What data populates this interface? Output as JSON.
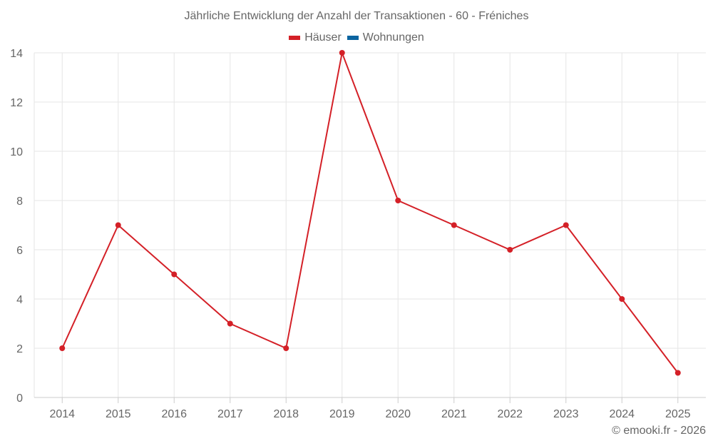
{
  "chart_data": {
    "type": "line",
    "title": "Jährliche Entwicklung der Anzahl der Transaktionen - 60 - Fréniches",
    "xlabel": "",
    "ylabel": "",
    "categories": [
      "2014",
      "2015",
      "2016",
      "2017",
      "2018",
      "2019",
      "2020",
      "2021",
      "2022",
      "2023",
      "2024",
      "2025"
    ],
    "series": [
      {
        "name": "Häuser",
        "color": "#d42027",
        "values": [
          2,
          7,
          5,
          3,
          2,
          14,
          8,
          7,
          6,
          7,
          4,
          1
        ]
      },
      {
        "name": "Wohnungen",
        "color": "#0b64a0",
        "values": []
      }
    ],
    "ylim": [
      0,
      14
    ],
    "yticks": [
      0,
      2,
      4,
      6,
      8,
      10,
      12,
      14
    ],
    "grid": true,
    "legend_position": "top"
  },
  "legend": {
    "items": [
      {
        "label": "Häuser",
        "color": "#d42027"
      },
      {
        "label": "Wohnungen",
        "color": "#0b64a0"
      }
    ]
  },
  "credit": "© emooki.fr - 2026"
}
